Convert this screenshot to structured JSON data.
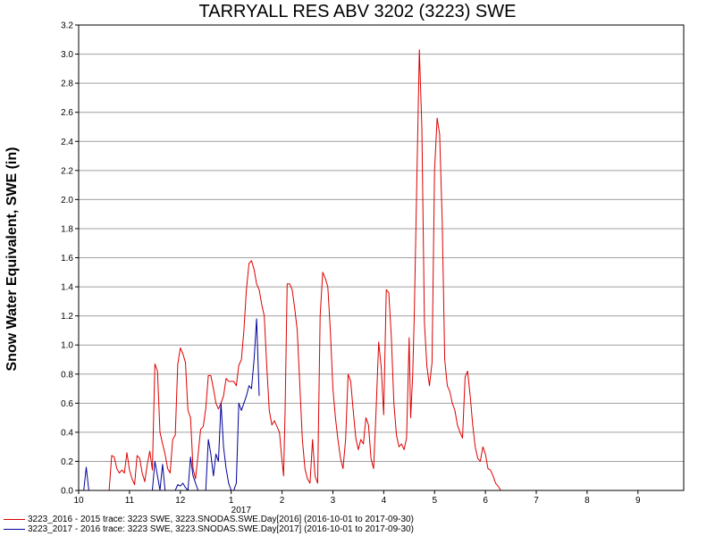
{
  "chart_data": {
    "type": "line",
    "title": "TARRYALL RES ABV 3202 (3223) SWE",
    "ylabel": "Snow Water Equivalent, SWE (in)",
    "ylim": [
      0,
      3.2
    ],
    "yticks": [
      "0.0",
      "0.2",
      "0.4",
      "0.6",
      "0.8",
      "1.0",
      "1.2",
      "1.4",
      "1.6",
      "1.8",
      "2.0",
      "2.2",
      "2.4",
      "2.6",
      "2.8",
      "3.0",
      "3.2"
    ],
    "x_axis": {
      "min_month": 10,
      "max_month": 21.9,
      "ticks": [
        {
          "m": 10,
          "label": "10"
        },
        {
          "m": 11,
          "label": "11"
        },
        {
          "m": 12,
          "label": "12"
        },
        {
          "m": 13,
          "label": "1"
        },
        {
          "m": 14,
          "label": "2"
        },
        {
          "m": 15,
          "label": "3"
        },
        {
          "m": 16,
          "label": "4"
        },
        {
          "m": 17,
          "label": "5"
        },
        {
          "m": 18,
          "label": "6"
        },
        {
          "m": 19,
          "label": "7"
        },
        {
          "m": 20,
          "label": "8"
        },
        {
          "m": 21,
          "label": "9"
        }
      ],
      "year_label": {
        "m": 13,
        "label": "2017"
      }
    },
    "grid": true,
    "legend_position": "bottom-left",
    "series": [
      {
        "name": "3223_2016 - 2015 trace: 3223 SWE, 3223.SNODAS.SWE.Day[2016] (2016-10-01 to 2017-09-30)",
        "color": "#dd0000",
        "points": [
          [
            10.6,
            0
          ],
          [
            10.65,
            0.24
          ],
          [
            10.7,
            0.23
          ],
          [
            10.75,
            0.15
          ],
          [
            10.8,
            0.12
          ],
          [
            10.85,
            0.14
          ],
          [
            10.9,
            0.12
          ],
          [
            10.95,
            0.26
          ],
          [
            11.0,
            0.14
          ],
          [
            11.05,
            0.08
          ],
          [
            11.1,
            0.04
          ],
          [
            11.15,
            0.24
          ],
          [
            11.2,
            0.22
          ],
          [
            11.25,
            0.12
          ],
          [
            11.3,
            0.06
          ],
          [
            11.35,
            0.18
          ],
          [
            11.4,
            0.27
          ],
          [
            11.45,
            0.14
          ],
          [
            11.5,
            0.87
          ],
          [
            11.55,
            0.82
          ],
          [
            11.6,
            0.4
          ],
          [
            11.65,
            0.32
          ],
          [
            11.7,
            0.25
          ],
          [
            11.75,
            0.15
          ],
          [
            11.8,
            0.12
          ],
          [
            11.85,
            0.35
          ],
          [
            11.9,
            0.38
          ],
          [
            11.95,
            0.87
          ],
          [
            12.0,
            0.98
          ],
          [
            12.05,
            0.94
          ],
          [
            12.1,
            0.88
          ],
          [
            12.15,
            0.55
          ],
          [
            12.2,
            0.5
          ],
          [
            12.25,
            0.15
          ],
          [
            12.3,
            0.08
          ],
          [
            12.35,
            0.25
          ],
          [
            12.4,
            0.42
          ],
          [
            12.45,
            0.44
          ],
          [
            12.5,
            0.56
          ],
          [
            12.55,
            0.79
          ],
          [
            12.6,
            0.79
          ],
          [
            12.65,
            0.7
          ],
          [
            12.7,
            0.6
          ],
          [
            12.75,
            0.56
          ],
          [
            12.8,
            0.6
          ],
          [
            12.85,
            0.65
          ],
          [
            12.9,
            0.77
          ],
          [
            12.95,
            0.75
          ],
          [
            13.0,
            0.75
          ],
          [
            13.05,
            0.75
          ],
          [
            13.1,
            0.72
          ],
          [
            13.15,
            0.86
          ],
          [
            13.2,
            0.9
          ],
          [
            13.25,
            1.1
          ],
          [
            13.3,
            1.38
          ],
          [
            13.35,
            1.56
          ],
          [
            13.4,
            1.58
          ],
          [
            13.45,
            1.52
          ],
          [
            13.5,
            1.42
          ],
          [
            13.55,
            1.38
          ],
          [
            13.6,
            1.28
          ],
          [
            13.65,
            1.2
          ],
          [
            13.7,
            0.85
          ],
          [
            13.75,
            0.55
          ],
          [
            13.8,
            0.45
          ],
          [
            13.85,
            0.48
          ],
          [
            13.9,
            0.44
          ],
          [
            13.95,
            0.4
          ],
          [
            14.0,
            0.2
          ],
          [
            14.03,
            0.1
          ],
          [
            14.06,
            0.55
          ],
          [
            14.1,
            1.42
          ],
          [
            14.15,
            1.42
          ],
          [
            14.2,
            1.38
          ],
          [
            14.25,
            1.25
          ],
          [
            14.3,
            1.1
          ],
          [
            14.35,
            0.72
          ],
          [
            14.4,
            0.35
          ],
          [
            14.45,
            0.15
          ],
          [
            14.5,
            0.08
          ],
          [
            14.55,
            0.05
          ],
          [
            14.6,
            0.35
          ],
          [
            14.65,
            0.1
          ],
          [
            14.7,
            0.05
          ],
          [
            14.75,
            1.2
          ],
          [
            14.8,
            1.5
          ],
          [
            14.85,
            1.46
          ],
          [
            14.9,
            1.4
          ],
          [
            14.95,
            1.1
          ],
          [
            15.0,
            0.7
          ],
          [
            15.05,
            0.5
          ],
          [
            15.1,
            0.35
          ],
          [
            15.15,
            0.22
          ],
          [
            15.2,
            0.15
          ],
          [
            15.25,
            0.35
          ],
          [
            15.3,
            0.8
          ],
          [
            15.35,
            0.75
          ],
          [
            15.4,
            0.55
          ],
          [
            15.45,
            0.36
          ],
          [
            15.5,
            0.28
          ],
          [
            15.55,
            0.35
          ],
          [
            15.6,
            0.32
          ],
          [
            15.65,
            0.5
          ],
          [
            15.7,
            0.45
          ],
          [
            15.75,
            0.22
          ],
          [
            15.8,
            0.15
          ],
          [
            15.85,
            0.55
          ],
          [
            15.9,
            1.02
          ],
          [
            15.95,
            0.85
          ],
          [
            16.0,
            0.52
          ],
          [
            16.05,
            1.38
          ],
          [
            16.1,
            1.36
          ],
          [
            16.15,
            1.05
          ],
          [
            16.2,
            0.6
          ],
          [
            16.25,
            0.38
          ],
          [
            16.3,
            0.3
          ],
          [
            16.35,
            0.32
          ],
          [
            16.4,
            0.28
          ],
          [
            16.45,
            0.36
          ],
          [
            16.5,
            1.05
          ],
          [
            16.53,
            0.5
          ],
          [
            16.57,
            0.8
          ],
          [
            16.6,
            1.2
          ],
          [
            16.65,
            2.1
          ],
          [
            16.7,
            3.03
          ],
          [
            16.75,
            2.5
          ],
          [
            16.8,
            1.15
          ],
          [
            16.85,
            0.85
          ],
          [
            16.9,
            0.72
          ],
          [
            16.95,
            0.88
          ],
          [
            17.0,
            2.2
          ],
          [
            17.05,
            2.56
          ],
          [
            17.1,
            2.45
          ],
          [
            17.15,
            1.85
          ],
          [
            17.2,
            0.9
          ],
          [
            17.25,
            0.72
          ],
          [
            17.3,
            0.68
          ],
          [
            17.35,
            0.6
          ],
          [
            17.4,
            0.55
          ],
          [
            17.45,
            0.45
          ],
          [
            17.5,
            0.4
          ],
          [
            17.55,
            0.36
          ],
          [
            17.6,
            0.78
          ],
          [
            17.65,
            0.82
          ],
          [
            17.7,
            0.65
          ],
          [
            17.75,
            0.45
          ],
          [
            17.8,
            0.3
          ],
          [
            17.85,
            0.22
          ],
          [
            17.9,
            0.2
          ],
          [
            17.95,
            0.3
          ],
          [
            18.0,
            0.25
          ],
          [
            18.05,
            0.15
          ],
          [
            18.1,
            0.14
          ],
          [
            18.15,
            0.1
          ],
          [
            18.2,
            0.05
          ],
          [
            18.25,
            0.03
          ],
          [
            18.3,
            0.0
          ]
        ]
      },
      {
        "name": "3223_2017 - 2016 trace: 3223 SWE, 3223.SNODAS.SWE.Day[2017] (2016-10-01 to 2017-09-30)",
        "color": "#000099",
        "points": [
          [
            10.1,
            0
          ],
          [
            10.15,
            0.16
          ],
          [
            10.2,
            0
          ],
          [
            11.45,
            0
          ],
          [
            11.5,
            0.2
          ],
          [
            11.55,
            0.1
          ],
          [
            11.6,
            0
          ],
          [
            11.65,
            0.18
          ],
          [
            11.7,
            0
          ],
          [
            11.9,
            0
          ],
          [
            11.95,
            0.04
          ],
          [
            12.0,
            0.03
          ],
          [
            12.05,
            0.05
          ],
          [
            12.1,
            0.02
          ],
          [
            12.15,
            0
          ],
          [
            12.2,
            0.23
          ],
          [
            12.25,
            0.1
          ],
          [
            12.3,
            0.05
          ],
          [
            12.35,
            0
          ],
          [
            12.5,
            0
          ],
          [
            12.55,
            0.35
          ],
          [
            12.6,
            0.25
          ],
          [
            12.65,
            0.1
          ],
          [
            12.7,
            0.25
          ],
          [
            12.75,
            0.2
          ],
          [
            12.8,
            0.6
          ],
          [
            12.85,
            0.3
          ],
          [
            12.9,
            0.15
          ],
          [
            12.95,
            0.05
          ],
          [
            13.0,
            0
          ],
          [
            13.05,
            0
          ],
          [
            13.1,
            0.05
          ],
          [
            13.15,
            0.6
          ],
          [
            13.2,
            0.55
          ],
          [
            13.25,
            0.6
          ],
          [
            13.3,
            0.65
          ],
          [
            13.35,
            0.72
          ],
          [
            13.4,
            0.7
          ],
          [
            13.45,
            0.9
          ],
          [
            13.5,
            1.18
          ],
          [
            13.55,
            0.65
          ]
        ]
      }
    ]
  }
}
